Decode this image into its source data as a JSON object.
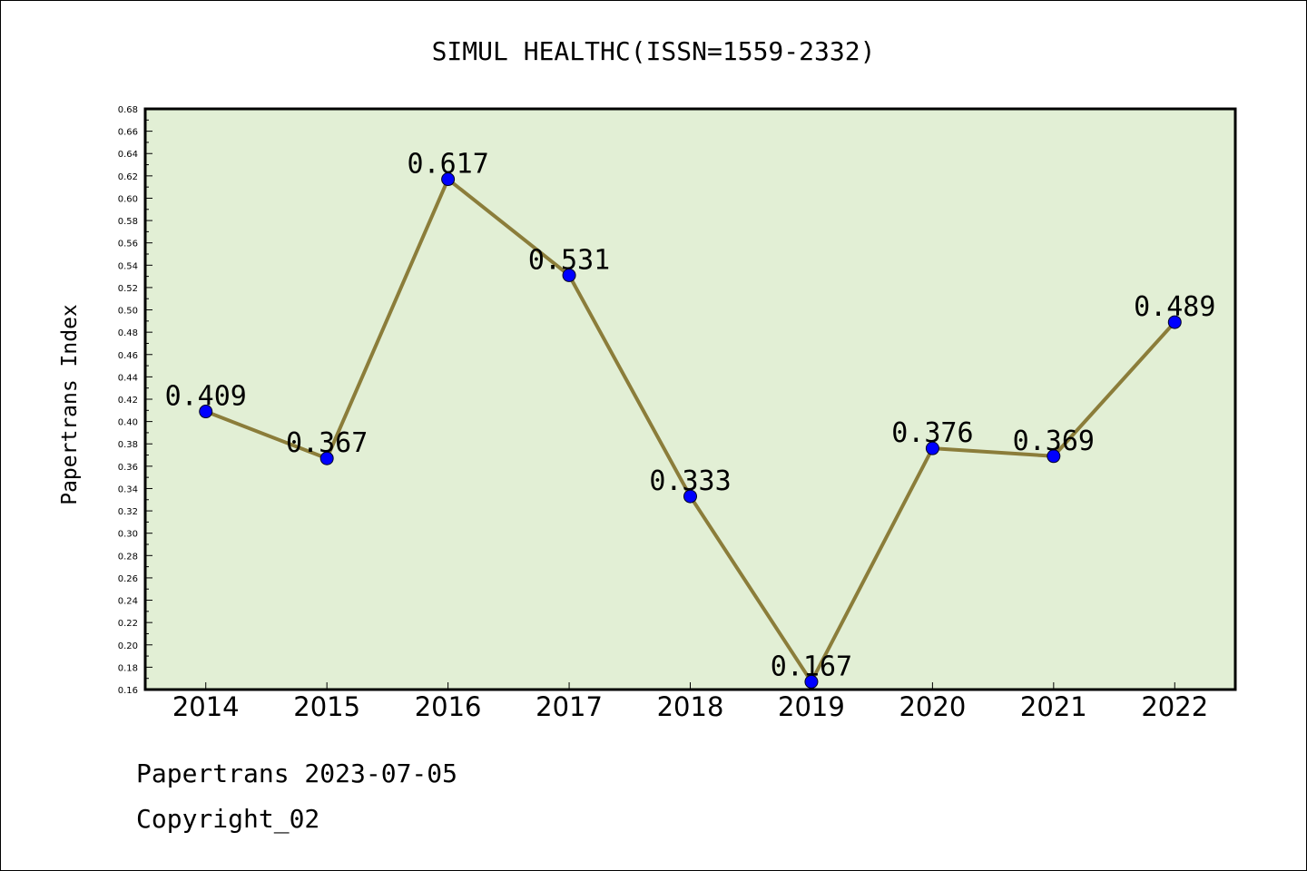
{
  "chart_data": {
    "type": "line",
    "title": "SIMUL HEALTHC(ISSN=1559-2332)",
    "xlabel": "",
    "ylabel": "Papertrans Index",
    "categories": [
      "2014",
      "2015",
      "2016",
      "2017",
      "2018",
      "2019",
      "2020",
      "2021",
      "2022"
    ],
    "values": [
      0.409,
      0.367,
      0.617,
      0.531,
      0.333,
      0.167,
      0.376,
      0.369,
      0.489
    ],
    "data_labels": [
      "0.409",
      "0.367",
      "0.617",
      "0.531",
      "0.333",
      "0.167",
      "0.376",
      "0.369",
      "0.489"
    ],
    "ylim": [
      0.16,
      0.68
    ],
    "yticks": [
      "0.16",
      "0.18",
      "0.20",
      "0.22",
      "0.24",
      "0.26",
      "0.28",
      "0.30",
      "0.32",
      "0.34",
      "0.36",
      "0.38",
      "0.40",
      "0.42",
      "0.44",
      "0.46",
      "0.48",
      "0.50",
      "0.52",
      "0.54",
      "0.56",
      "0.58",
      "0.60",
      "0.62",
      "0.64",
      "0.66",
      "0.68"
    ],
    "grid": false,
    "colors": {
      "plot_background": "#e2efd5",
      "line": "#8b7d3a",
      "marker": "#0000ff"
    }
  },
  "footer": {
    "line1": "Papertrans 2023-07-05",
    "line2": "Copyright_02"
  }
}
